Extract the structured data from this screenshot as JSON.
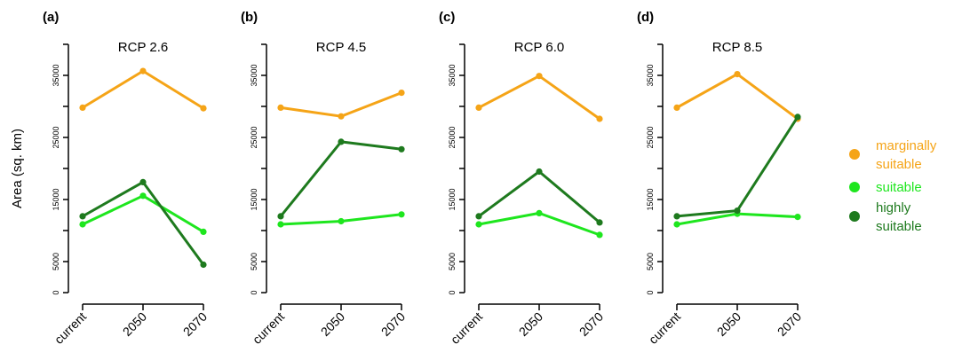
{
  "ylabel": "Area (sq. km)",
  "legend": {
    "position": "right",
    "items": [
      {
        "label_lines": [
          "marginally",
          "suitable"
        ],
        "color": "#f5a417"
      },
      {
        "label_lines": [
          "suitable"
        ],
        "color": "#1ee61e"
      },
      {
        "label_lines": [
          "highly",
          "suitable"
        ],
        "color": "#1e7a1e"
      }
    ]
  },
  "chart_data": [
    {
      "type": "line",
      "panel_label": "(a)",
      "title": "RCP 2.6",
      "categories": [
        "current",
        "2050",
        "2070"
      ],
      "ylim": [
        0,
        40000
      ],
      "yticks": [
        0,
        5000,
        15000,
        25000,
        35000
      ],
      "series": [
        {
          "name": "marginally suitable",
          "color": "#f5a417",
          "values": [
            29800,
            35700,
            29700
          ]
        },
        {
          "name": "suitable",
          "color": "#1ee61e",
          "values": [
            11000,
            15600,
            9800
          ]
        },
        {
          "name": "highly suitable",
          "color": "#1e7a1e",
          "values": [
            12300,
            17800,
            4500
          ]
        }
      ]
    },
    {
      "type": "line",
      "panel_label": "(b)",
      "title": "RCP 4.5",
      "categories": [
        "current",
        "2050",
        "2070"
      ],
      "ylim": [
        0,
        40000
      ],
      "yticks": [
        0,
        5000,
        15000,
        25000,
        35000
      ],
      "series": [
        {
          "name": "marginally suitable",
          "color": "#f5a417",
          "values": [
            29800,
            28400,
            32200
          ]
        },
        {
          "name": "suitable",
          "color": "#1ee61e",
          "values": [
            11000,
            11500,
            12600
          ]
        },
        {
          "name": "highly suitable",
          "color": "#1e7a1e",
          "values": [
            12300,
            24300,
            23100
          ]
        }
      ]
    },
    {
      "type": "line",
      "panel_label": "(c)",
      "title": "RCP 6.0",
      "categories": [
        "current",
        "2050",
        "2070"
      ],
      "ylim": [
        0,
        40000
      ],
      "yticks": [
        0,
        5000,
        15000,
        25000,
        35000
      ],
      "series": [
        {
          "name": "marginally suitable",
          "color": "#f5a417",
          "values": [
            29800,
            34900,
            28000
          ]
        },
        {
          "name": "suitable",
          "color": "#1ee61e",
          "values": [
            11000,
            12800,
            9300
          ]
        },
        {
          "name": "highly suitable",
          "color": "#1e7a1e",
          "values": [
            12300,
            19500,
            11300
          ]
        }
      ]
    },
    {
      "type": "line",
      "panel_label": "(d)",
      "title": "RCP 8.5",
      "categories": [
        "current",
        "2050",
        "2070"
      ],
      "ylim": [
        0,
        40000
      ],
      "yticks": [
        0,
        5000,
        15000,
        25000,
        35000
      ],
      "series": [
        {
          "name": "marginally suitable",
          "color": "#f5a417",
          "values": [
            29800,
            35200,
            28000
          ]
        },
        {
          "name": "suitable",
          "color": "#1ee61e",
          "values": [
            11000,
            12700,
            12200
          ]
        },
        {
          "name": "highly suitable",
          "color": "#1e7a1e",
          "values": [
            12300,
            13200,
            28300
          ]
        }
      ]
    }
  ]
}
